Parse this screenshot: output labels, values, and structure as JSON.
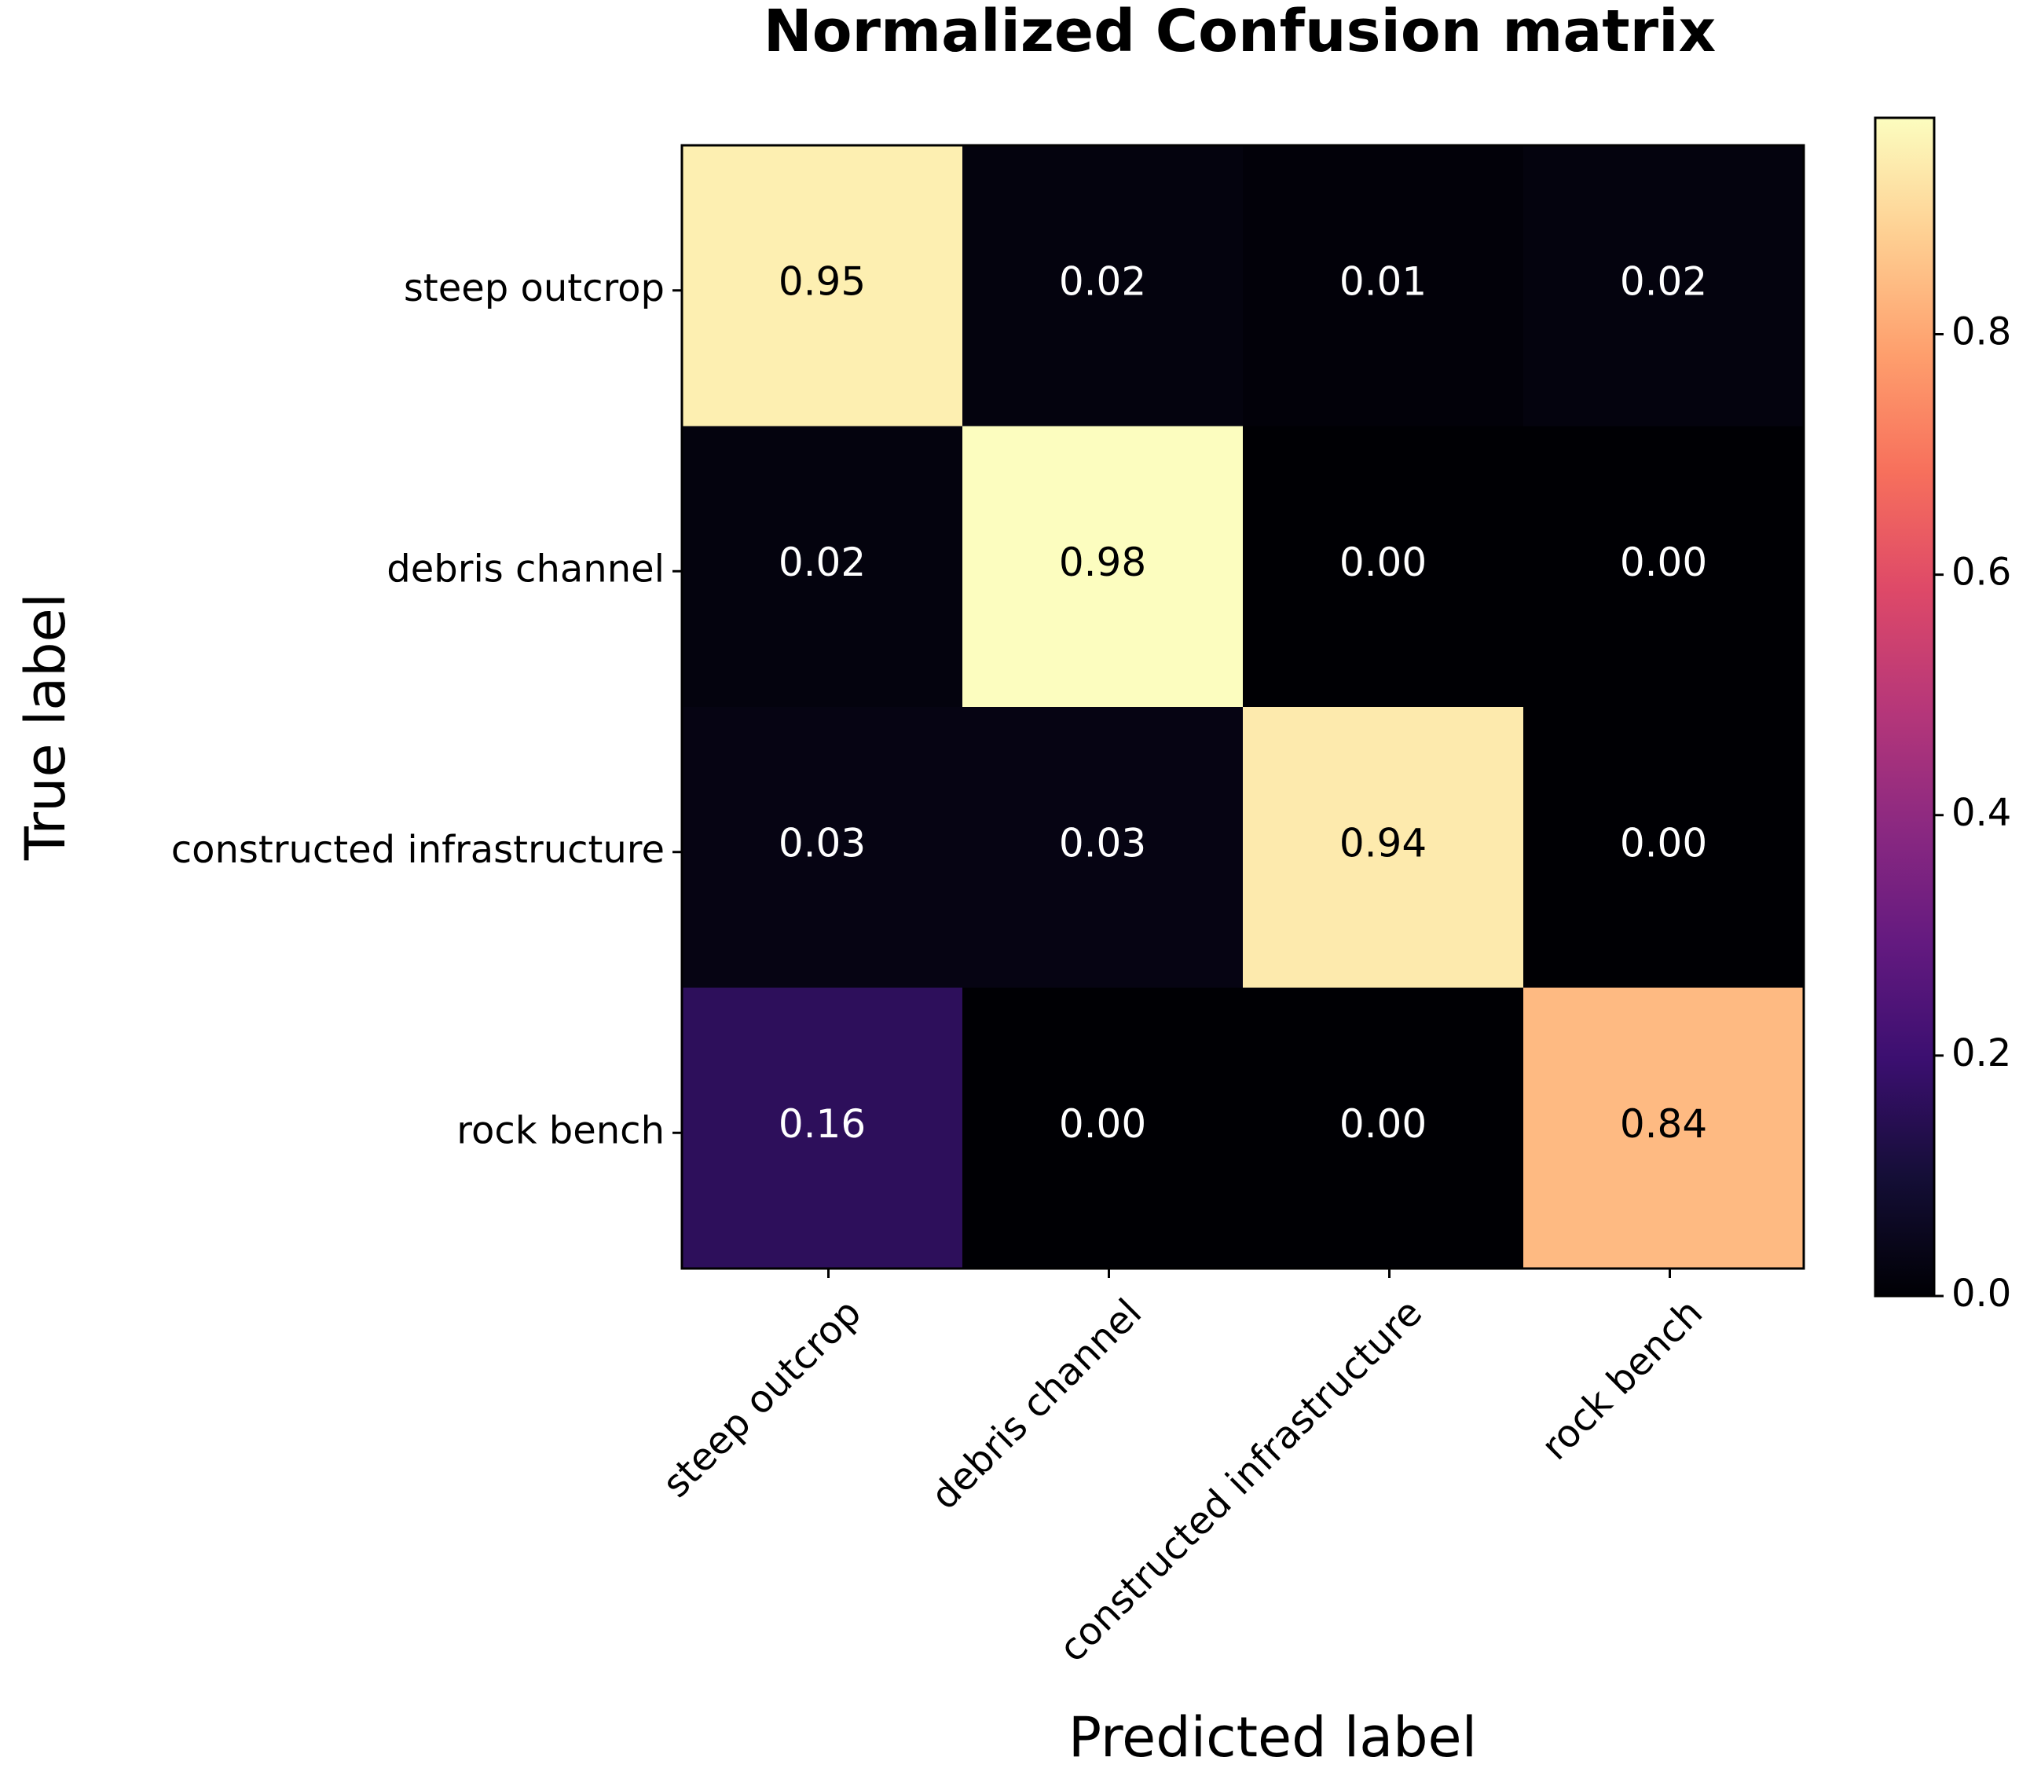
{
  "chart_data": {
    "type": "heatmap",
    "title": "Normalized Confusion matrix",
    "xlabel": "Predicted label",
    "ylabel": "True label",
    "x_categories": [
      "steep outcrop",
      "debris channel",
      "constructed infrastructure",
      "rock bench"
    ],
    "y_categories": [
      "steep outcrop",
      "debris channel",
      "constructed infrastructure",
      "rock bench"
    ],
    "values": [
      [
        0.95,
        0.02,
        0.01,
        0.02
      ],
      [
        0.02,
        0.98,
        0.0,
        0.0
      ],
      [
        0.03,
        0.03,
        0.94,
        0.0
      ],
      [
        0.16,
        0.0,
        0.0,
        0.84
      ]
    ],
    "value_labels": [
      [
        "0.95",
        "0.02",
        "0.01",
        "0.02"
      ],
      [
        "0.02",
        "0.98",
        "0.00",
        "0.00"
      ],
      [
        "0.03",
        "0.03",
        "0.94",
        "0.00"
      ],
      [
        "0.16",
        "0.00",
        "0.00",
        "0.84"
      ]
    ],
    "colormap": "magma",
    "colorbar": {
      "range": [
        0.0,
        0.98
      ],
      "ticks": [
        0.0,
        0.2,
        0.4,
        0.6,
        0.8
      ],
      "tick_labels": [
        "0.0",
        "0.2",
        "0.4",
        "0.6",
        "0.8"
      ]
    },
    "grid": false
  }
}
